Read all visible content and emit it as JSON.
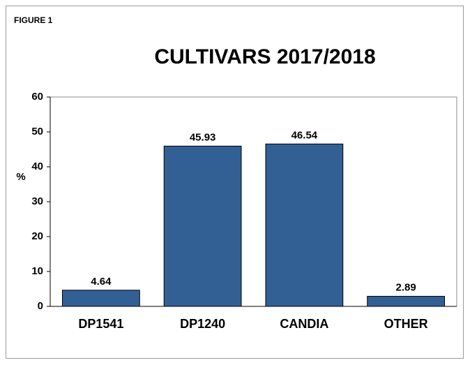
{
  "chart_data": {
    "type": "bar",
    "figure_label": "FIGURE 1",
    "title": "CULTIVARS 2017/2018",
    "y_label": "%",
    "categories": [
      "DP1541",
      "DP1240",
      "CANDIA",
      "OTHER"
    ],
    "values": [
      4.64,
      45.93,
      46.54,
      2.89
    ],
    "color": "#336094",
    "ylim": [
      0,
      60
    ],
    "yticks": [
      0,
      10,
      20,
      30,
      40,
      50,
      60
    ],
    "grid": false
  }
}
